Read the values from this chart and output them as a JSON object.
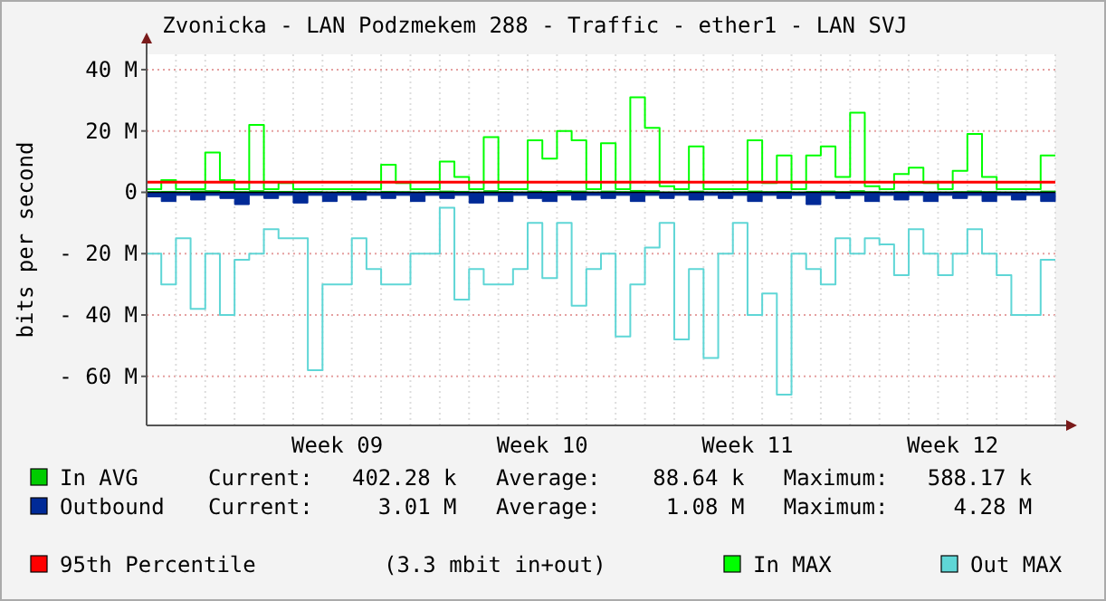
{
  "chart_data": {
    "type": "area",
    "title": "Zvonicka - LAN Podzmekem 288 - Traffic - ether1 - LAN SVJ",
    "ylabel": "bits per second",
    "ylim": [
      -76,
      45
    ],
    "categories": [
      null,
      null,
      null,
      null,
      null,
      null,
      null,
      null,
      null,
      null,
      null,
      null,
      null,
      "Week 09",
      null,
      null,
      null,
      null,
      null,
      null,
      null,
      null,
      null,
      null,
      null,
      null,
      null,
      "Week 10",
      null,
      null,
      null,
      null,
      null,
      null,
      null,
      null,
      null,
      null,
      null,
      null,
      null,
      "Week 11",
      null,
      null,
      null,
      null,
      null,
      null,
      null,
      null,
      null,
      null,
      null,
      null,
      null,
      "Week 12",
      null,
      null,
      null,
      null,
      null,
      null,
      null
    ],
    "yticks": [
      {
        "value": -60,
        "label": "- 60 M"
      },
      {
        "value": -40,
        "label": "- 40 M"
      },
      {
        "value": -20,
        "label": "- 20 M"
      },
      0,
      {
        "value": 20,
        "label": "20 M"
      },
      {
        "value": 40,
        "label": "40 M"
      }
    ],
    "grid": true,
    "legend": "bottom",
    "series": [
      {
        "name": "In AVG",
        "color": "#00cc00",
        "values": [
          0.2,
          0.3,
          0.2,
          0.4,
          0.5,
          0.3,
          0.2,
          0.5,
          0.2,
          0.3,
          0.1,
          0.2,
          0.1,
          0.2,
          0.2,
          0.1,
          0.3,
          0.2,
          0.1,
          0.2,
          0.4,
          0.3,
          0.1,
          0.5,
          0.2,
          0.1,
          0.4,
          0.3,
          0.5,
          0.4,
          0.1,
          0.4,
          0.2,
          0.6,
          0.5,
          0.1,
          0.1,
          0.4,
          0.1,
          0.1,
          0.2,
          0.4,
          0.2,
          0.3,
          0.1,
          0.3,
          0.4,
          0.2,
          0.5,
          0.2,
          0.1,
          0.2,
          0.3,
          0.1,
          0.1,
          0.2,
          0.4,
          0.2,
          0.1,
          0.1,
          0.1,
          0.4,
          0.4
        ]
      },
      {
        "name": "Outbound",
        "color": "#002a97",
        "values": [
          -1.5,
          -3,
          -1,
          -2.5,
          -1,
          -2,
          -4,
          -1,
          -2,
          -1,
          -3.5,
          -1,
          -3,
          -1,
          -2.5,
          -1,
          -2,
          -1,
          -3,
          -1,
          -2,
          -1,
          -3.5,
          -1,
          -3,
          -1,
          -2,
          -3,
          -1,
          -2.5,
          -1,
          -2,
          -1,
          -3,
          -1,
          -2,
          -1,
          -2.5,
          -1,
          -2,
          -1,
          -3,
          -1,
          -2,
          -1,
          -4,
          -1,
          -2,
          -1,
          -3,
          -1,
          -2.5,
          -1,
          -3,
          -1,
          -2,
          -1,
          -3,
          -1,
          -2.5,
          -1,
          -3,
          -3
        ]
      },
      {
        "name": "In MAX",
        "type": "step",
        "color": "#00ff00",
        "values": [
          1,
          4,
          1,
          1,
          13,
          4,
          1,
          22,
          1,
          3,
          1,
          1,
          1,
          1,
          1,
          1,
          9,
          3,
          1,
          1,
          10,
          5,
          1,
          18,
          1,
          1,
          17,
          11,
          20,
          17,
          1,
          16,
          1,
          31,
          21,
          2,
          1,
          15,
          1,
          1,
          1,
          17,
          3,
          12,
          1,
          12,
          15,
          5,
          26,
          2,
          1,
          6,
          8,
          3,
          1,
          7,
          19,
          5,
          1,
          1,
          1,
          12,
          12
        ]
      },
      {
        "name": "Out MAX",
        "type": "step",
        "color": "#5fd6d6",
        "values": [
          -20,
          -30,
          -15,
          -38,
          -20,
          -40,
          -22,
          -20,
          -12,
          -15,
          -15,
          -58,
          -30,
          -30,
          -15,
          -25,
          -30,
          -30,
          -20,
          -20,
          -5,
          -35,
          -25,
          -30,
          -30,
          -25,
          -10,
          -28,
          -10,
          -37,
          -25,
          -20,
          -47,
          -30,
          -18,
          -10,
          -48,
          -25,
          -54,
          -20,
          -10,
          -40,
          -33,
          -66,
          -20,
          -25,
          -30,
          -15,
          -20,
          -15,
          -17,
          -27,
          -12,
          -20,
          -27,
          -20,
          -12,
          -20,
          -27,
          -40,
          -40,
          -22,
          -22
        ]
      }
    ],
    "ref_lines": [
      {
        "axis": "y",
        "value": 3.3,
        "label": "95th Percentile",
        "color": "#ff0000"
      }
    ],
    "annotations": [
      "Current:   402.28 k   Average:    88.64 k   Maximum:   588.17 k",
      "Current:     3.01 M   Average:     1.08 M   Maximum:     4.28 M",
      "(3.3 mbit in+out)"
    ]
  }
}
